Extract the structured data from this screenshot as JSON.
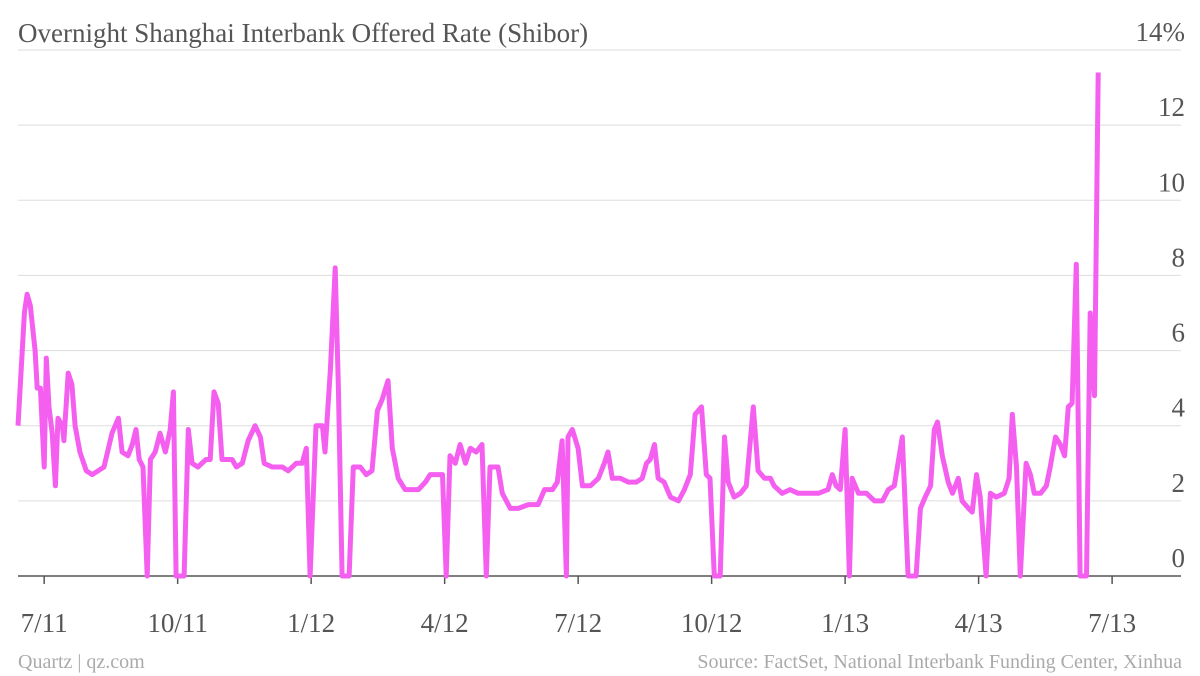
{
  "chart_data": {
    "type": "line",
    "title": "Overnight Shanghai Interbank Offered Rate (Shibor)",
    "credit": "Quartz | qz.com",
    "source": "Source: FactSet, National Interbank Funding Center, Xinhua",
    "xlim": [
      2011.451,
      2013.629
    ],
    "xticks": [
      {
        "value": 2011.5,
        "label": "7/11"
      },
      {
        "value": 2011.75,
        "label": "10/11"
      },
      {
        "value": 2012.0,
        "label": "1/12"
      },
      {
        "value": 2012.25,
        "label": "4/12"
      },
      {
        "value": 2012.5,
        "label": "7/12"
      },
      {
        "value": 2012.75,
        "label": "10/12"
      },
      {
        "value": 2013.0,
        "label": "1/13"
      },
      {
        "value": 2013.25,
        "label": "4/13"
      },
      {
        "value": 2013.5,
        "label": "7/13"
      }
    ],
    "ylim": [
      0,
      14
    ],
    "yticks": [
      0,
      2,
      4,
      6,
      8,
      10,
      12,
      {
        "value": 14,
        "label": "14%"
      }
    ],
    "grid": true,
    "x": [
      2011.451,
      2011.463,
      2011.468,
      2011.474,
      2011.483,
      2011.487,
      2011.493,
      2011.5,
      2011.504,
      2011.509,
      2011.515,
      2011.521,
      2011.526,
      2011.534,
      2011.537,
      2011.545,
      2011.552,
      2011.558,
      2011.567,
      2011.579,
      2011.59,
      2011.601,
      2011.612,
      2011.627,
      2011.639,
      2011.646,
      2011.657,
      2011.665,
      2011.672,
      2011.678,
      2011.685,
      2011.693,
      2011.699,
      2011.708,
      2011.717,
      2011.727,
      2011.736,
      2011.742,
      2011.747,
      2011.762,
      2011.77,
      2011.777,
      2011.788,
      2011.803,
      2011.811,
      2011.818,
      2011.826,
      2011.833,
      2011.852,
      2011.86,
      2011.871,
      2011.882,
      2011.895,
      2011.905,
      2011.912,
      2011.927,
      2011.946,
      2011.957,
      2011.972,
      2011.983,
      2011.991,
      2011.998,
      2012.009,
      2012.021,
      2012.026,
      2012.036,
      2012.045,
      2012.051,
      2012.058,
      2012.071,
      2012.079,
      2012.092,
      2012.103,
      2012.114,
      2012.124,
      2012.133,
      2012.144,
      2012.152,
      2012.163,
      2012.176,
      2012.201,
      2012.214,
      2012.223,
      2012.236,
      2012.246,
      2012.253,
      2012.26,
      2012.27,
      2012.279,
      2012.289,
      2012.298,
      2012.309,
      2012.32,
      2012.328,
      2012.335,
      2012.35,
      2012.358,
      2012.373,
      2012.388,
      2012.407,
      2012.425,
      2012.437,
      2012.452,
      2012.461,
      2012.47,
      2012.478,
      2012.481,
      2012.489,
      2012.5,
      2012.508,
      2012.523,
      2012.538,
      2012.549,
      2012.556,
      2012.564,
      2012.579,
      2012.594,
      2012.609,
      2012.62,
      2012.628,
      2012.635,
      2012.643,
      2012.65,
      2012.661,
      2012.673,
      2012.688,
      2012.699,
      2012.71,
      2012.719,
      2012.731,
      2012.74,
      2012.747,
      2012.755,
      2012.766,
      2012.774,
      2012.781,
      2012.792,
      2012.804,
      2012.815,
      2012.828,
      2012.837,
      2012.849,
      2012.86,
      2012.867,
      2012.882,
      2012.897,
      2012.912,
      2012.931,
      2012.95,
      2012.968,
      2012.976,
      2012.983,
      2012.991,
      2013.0,
      2013.008,
      2013.013,
      2013.025,
      2013.04,
      2013.055,
      2013.07,
      2013.081,
      2013.092,
      2013.107,
      2013.118,
      2013.133,
      2013.141,
      2013.15,
      2013.16,
      2013.167,
      2013.173,
      2013.182,
      2013.193,
      2013.201,
      2013.212,
      2013.219,
      2013.231,
      2013.238,
      2013.246,
      2013.253,
      2013.264,
      2013.272,
      2013.283,
      2013.298,
      2013.307,
      2013.313,
      2013.321,
      2013.328,
      2013.339,
      2013.347,
      2013.354,
      2013.366,
      2013.377,
      2013.384,
      2013.394,
      2013.403,
      2013.411,
      2013.418,
      2013.425,
      2013.433,
      2013.44,
      2013.452,
      2013.459,
      2013.467,
      2013.474
    ],
    "series": [
      {
        "color": "#f45ff0",
        "values": [
          4.0,
          7.0,
          7.5,
          7.2,
          6.0,
          5.0,
          5.0,
          2.9,
          5.8,
          4.5,
          3.8,
          2.4,
          4.2,
          4.0,
          3.6,
          5.4,
          5.1,
          4.0,
          3.3,
          2.8,
          2.7,
          2.8,
          2.9,
          3.8,
          4.2,
          3.3,
          3.2,
          3.5,
          3.9,
          3.1,
          2.9,
          0,
          3.1,
          3.3,
          3.8,
          3.3,
          3.9,
          4.9,
          0,
          0,
          3.9,
          3.0,
          2.9,
          3.1,
          3.1,
          4.9,
          4.6,
          3.1,
          3.1,
          2.9,
          3.0,
          3.6,
          4.0,
          3.7,
          3.0,
          2.9,
          2.9,
          2.8,
          3.0,
          3.0,
          3.4,
          0,
          4.0,
          4.0,
          3.3,
          5.5,
          8.2,
          5.0,
          0,
          0,
          2.9,
          2.9,
          2.7,
          2.8,
          4.4,
          4.7,
          5.2,
          3.4,
          2.6,
          2.3,
          2.3,
          2.5,
          2.7,
          2.7,
          2.7,
          0,
          3.2,
          3.0,
          3.5,
          3.0,
          3.4,
          3.3,
          3.5,
          0,
          2.9,
          2.9,
          2.2,
          1.8,
          1.8,
          1.9,
          1.9,
          2.3,
          2.3,
          2.5,
          3.6,
          0,
          3.7,
          3.9,
          3.4,
          2.4,
          2.4,
          2.6,
          3.0,
          3.3,
          2.6,
          2.6,
          2.5,
          2.5,
          2.6,
          3.0,
          3.1,
          3.5,
          2.6,
          2.5,
          2.1,
          2.0,
          2.3,
          2.7,
          4.3,
          4.5,
          2.7,
          2.6,
          0,
          0,
          3.7,
          2.5,
          2.1,
          2.2,
          2.4,
          4.5,
          2.8,
          2.6,
          2.6,
          2.4,
          2.2,
          2.3,
          2.2,
          2.2,
          2.2,
          2.3,
          2.7,
          2.4,
          2.3,
          3.9,
          0,
          2.6,
          2.2,
          2.2,
          2.0,
          2.0,
          2.3,
          2.4,
          3.7,
          0,
          0,
          1.8,
          2.1,
          2.4,
          3.9,
          4.1,
          3.2,
          2.5,
          2.2,
          2.6,
          2.0,
          1.8,
          1.7,
          2.7,
          2.1,
          0,
          2.2,
          2.1,
          2.2,
          2.6,
          4.3,
          2.9,
          0,
          3.0,
          2.7,
          2.2,
          2.2,
          2.4,
          2.9,
          3.7,
          3.5,
          3.2,
          4.5,
          4.6,
          8.3,
          0,
          0,
          7.0,
          4.8,
          13.4
        ]
      }
    ]
  }
}
